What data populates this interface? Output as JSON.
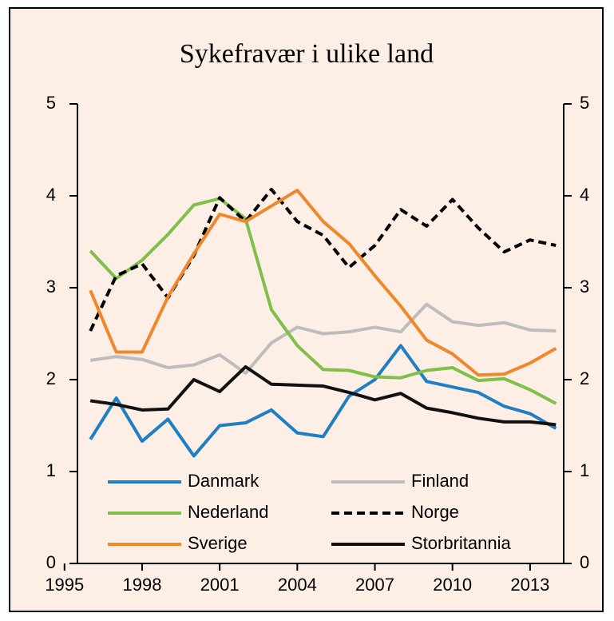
{
  "chart_data": {
    "type": "line",
    "title": "Sykefravær i ulike land",
    "x": [
      1996,
      1997,
      1998,
      1999,
      2000,
      2001,
      2002,
      2003,
      2004,
      2005,
      2006,
      2007,
      2008,
      2009,
      2010,
      2011,
      2012,
      2013,
      2014
    ],
    "xlim": [
      1995.5,
      2014.3
    ],
    "xticks": [
      1995,
      1998,
      2001,
      2004,
      2007,
      2010,
      2013
    ],
    "ylim": [
      0,
      5
    ],
    "yticks": [
      0,
      1,
      2,
      3,
      4,
      5
    ],
    "y2lim": [
      0,
      5
    ],
    "y2ticks": [
      0,
      1,
      2,
      3,
      4,
      5
    ],
    "series": [
      {
        "name": "Danmark",
        "color": "#1f7fc4",
        "linestyle": "solid",
        "values": [
          1.35,
          1.8,
          1.33,
          1.57,
          1.17,
          1.5,
          1.53,
          1.67,
          1.42,
          1.38,
          1.82,
          2.0,
          2.37,
          1.98,
          1.92,
          1.86,
          1.71,
          1.63,
          1.47
        ]
      },
      {
        "name": "Finland",
        "color": "#bdbdbd",
        "linestyle": "solid",
        "values": [
          2.21,
          2.25,
          2.22,
          2.13,
          2.16,
          2.27,
          2.07,
          2.4,
          2.57,
          2.5,
          2.52,
          2.57,
          2.52,
          2.82,
          2.63,
          2.59,
          2.62,
          2.54,
          2.53
        ]
      },
      {
        "name": "Nederland",
        "color": "#7fbf4a",
        "linestyle": "solid",
        "values": [
          3.4,
          3.1,
          3.3,
          3.58,
          3.9,
          3.97,
          3.75,
          2.76,
          2.37,
          2.11,
          2.1,
          2.03,
          2.02,
          2.1,
          2.13,
          1.99,
          2.01,
          1.89,
          1.74
        ]
      },
      {
        "name": "Norge",
        "color": "#000000",
        "linestyle": "dashed",
        "values": [
          2.53,
          3.13,
          3.26,
          2.89,
          3.35,
          3.98,
          3.72,
          4.07,
          3.72,
          3.57,
          3.22,
          3.46,
          3.85,
          3.67,
          3.96,
          3.65,
          3.39,
          3.52,
          3.46
        ]
      },
      {
        "name": "Sverige",
        "color": "#f0872a",
        "linestyle": "solid",
        "values": [
          2.97,
          2.3,
          2.3,
          2.9,
          3.37,
          3.8,
          3.72,
          3.89,
          4.06,
          3.72,
          3.48,
          3.13,
          2.8,
          2.43,
          2.28,
          2.05,
          2.06,
          2.18,
          2.34
        ]
      },
      {
        "name": "Storbritannia",
        "color": "#111111",
        "linestyle": "solid",
        "values": [
          1.77,
          1.73,
          1.67,
          1.68,
          2.0,
          1.87,
          2.14,
          1.95,
          1.94,
          1.93,
          1.86,
          1.78,
          1.85,
          1.69,
          1.64,
          1.58,
          1.54,
          1.54,
          1.51
        ]
      }
    ]
  }
}
